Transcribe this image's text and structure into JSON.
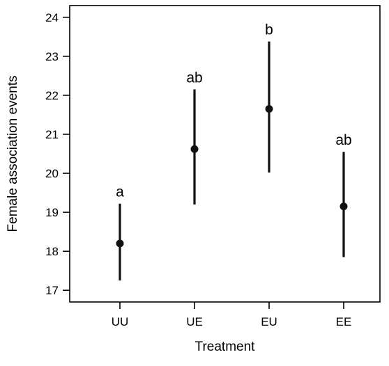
{
  "chart_data": {
    "type": "scatter",
    "title": "",
    "xlabel": "Treatment",
    "ylabel": "Female association events",
    "categories": [
      "UU",
      "UE",
      "EU",
      "EE"
    ],
    "series": [
      {
        "values": [
          18.2,
          20.62,
          21.65,
          19.15
        ],
        "lower": [
          17.25,
          19.2,
          20.02,
          17.85
        ],
        "upper": [
          19.22,
          22.15,
          23.38,
          20.55
        ],
        "labels": [
          "a",
          "ab",
          "b",
          "ab"
        ]
      }
    ],
    "yticks": [
      17,
      18,
      19,
      20,
      21,
      22,
      23,
      24
    ],
    "yticklabels": [
      "17",
      "18",
      "19",
      "20",
      "21",
      "22",
      "23",
      "24"
    ],
    "ylim": [
      16.7,
      24.3
    ],
    "grid": false,
    "legend": "none"
  }
}
